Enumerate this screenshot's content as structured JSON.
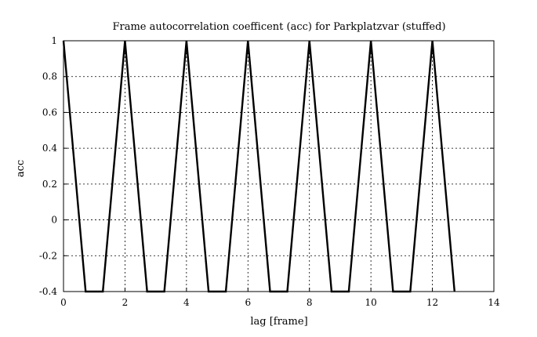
{
  "chart_data": {
    "type": "line",
    "title": "Frame autocorrelation coefficent (acc) for Parkplatzvar (stuffed)",
    "xlabel": "lag [frame]",
    "ylabel": "acc",
    "xlim": [
      0,
      14
    ],
    "ylim": [
      -0.4,
      1
    ],
    "xticks": [
      0,
      2,
      4,
      6,
      8,
      10,
      12,
      14
    ],
    "yticks": [
      -0.4,
      -0.2,
      0,
      0.2,
      0.4,
      0.6,
      0.8,
      1
    ],
    "xtick_labels": [
      "0",
      "2",
      "4",
      "6",
      "8",
      "10",
      "12",
      "14"
    ],
    "ytick_labels": [
      "-0.4",
      "-0.2",
      "0",
      "0.2",
      "0.4",
      "0.6",
      "0.8",
      "1"
    ],
    "grid": true,
    "series": [
      {
        "x": [
          0,
          0.72,
          1.28,
          2,
          2.72,
          3.28,
          4,
          4.72,
          5.28,
          6,
          6.72,
          7.28,
          8,
          8.72,
          9.28,
          10,
          10.72,
          11.28,
          12,
          12.72
        ],
        "y": [
          1,
          -0.4,
          -0.4,
          1,
          -0.4,
          -0.4,
          1,
          -0.4,
          -0.4,
          1,
          -0.4,
          -0.4,
          1,
          -0.4,
          -0.4,
          1,
          -0.4,
          -0.4,
          1,
          -0.4
        ],
        "color": "#000000"
      }
    ]
  }
}
